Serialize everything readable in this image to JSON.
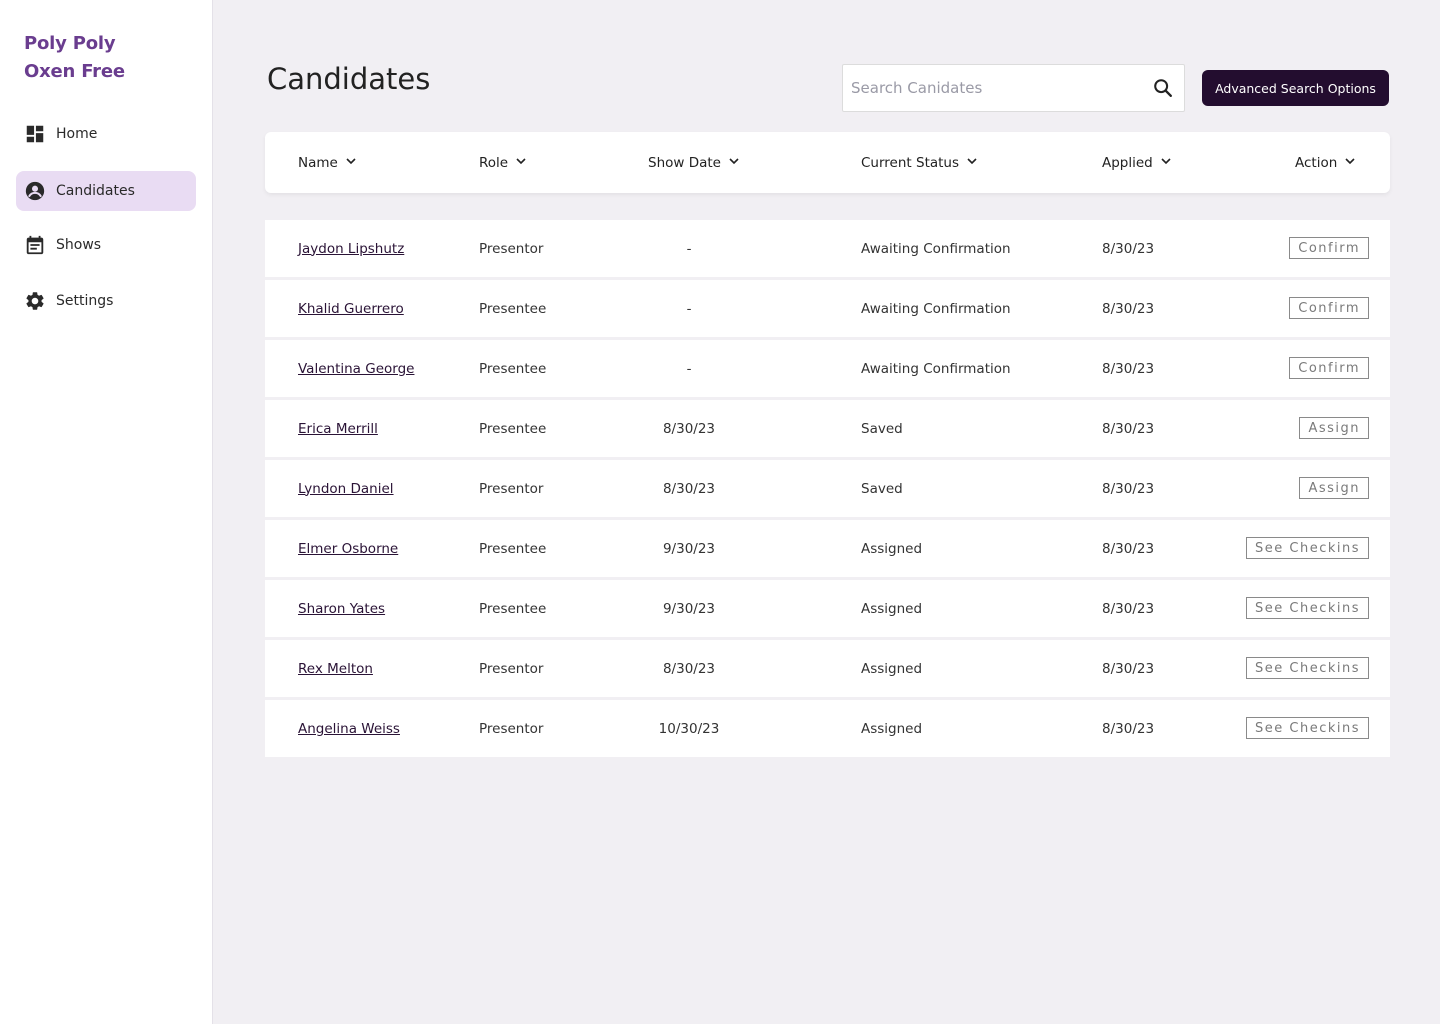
{
  "brand": {
    "line1": "Poly Poly",
    "line2": "Oxen Free",
    "color": "#6a3d8f"
  },
  "sidebar": {
    "items": [
      {
        "label": "Home",
        "icon": "dashboard-icon",
        "active": false
      },
      {
        "label": "Candidates",
        "icon": "account-circle-icon",
        "active": true
      },
      {
        "label": "Shows",
        "icon": "calendar-icon",
        "active": false
      },
      {
        "label": "Settings",
        "icon": "gear-icon",
        "active": false
      }
    ]
  },
  "page": {
    "title": "Candidates"
  },
  "search": {
    "placeholder": "Search Canidates",
    "value": ""
  },
  "advanced_button": {
    "label": "Advanced Search Options",
    "color": "#230d2f"
  },
  "table": {
    "columns": [
      "Name",
      "Role",
      "Show Date",
      "Current Status",
      "Applied",
      "Action"
    ],
    "rows": [
      {
        "name": "Jaydon Lipshutz",
        "role": "Presentor",
        "show_date": "-",
        "status": "Awaiting Confirmation",
        "applied": "8/30/23",
        "action": "Confirm"
      },
      {
        "name": "Khalid Guerrero",
        "role": "Presentee",
        "show_date": "-",
        "status": "Awaiting Confirmation",
        "applied": "8/30/23",
        "action": "Confirm"
      },
      {
        "name": "Valentina George",
        "role": "Presentee",
        "show_date": "-",
        "status": "Awaiting Confirmation",
        "applied": "8/30/23",
        "action": "Confirm"
      },
      {
        "name": "Erica Merrill",
        "role": "Presentee",
        "show_date": "8/30/23",
        "status": "Saved",
        "applied": "8/30/23",
        "action": "Assign"
      },
      {
        "name": "Lyndon Daniel",
        "role": "Presentor",
        "show_date": "8/30/23",
        "status": "Saved",
        "applied": "8/30/23",
        "action": "Assign"
      },
      {
        "name": "Elmer Osborne",
        "role": "Presentee",
        "show_date": "9/30/23",
        "status": "Assigned",
        "applied": "8/30/23",
        "action": "See Checkins"
      },
      {
        "name": "Sharon Yates",
        "role": "Presentee",
        "show_date": "9/30/23",
        "status": "Assigned",
        "applied": "8/30/23",
        "action": "See Checkins"
      },
      {
        "name": "Rex Melton",
        "role": "Presentor",
        "show_date": "8/30/23",
        "status": "Assigned",
        "applied": "8/30/23",
        "action": "See Checkins"
      },
      {
        "name": "Angelina Weiss",
        "role": "Presentor",
        "show_date": "10/30/23",
        "status": "Assigned",
        "applied": "8/30/23",
        "action": "See Checkins"
      }
    ]
  }
}
